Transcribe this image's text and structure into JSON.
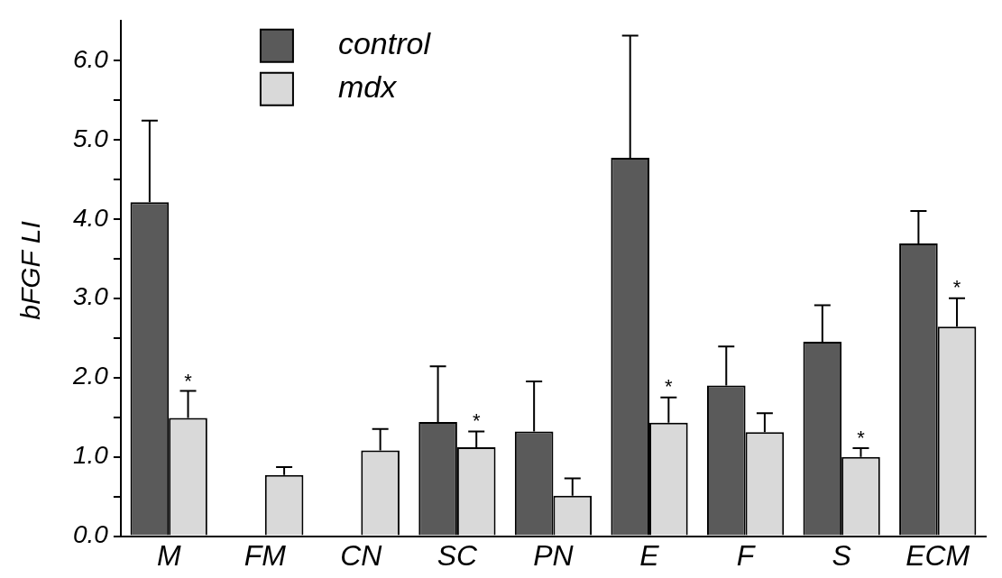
{
  "chart_data": {
    "type": "bar",
    "ylabel": "bFGF LI",
    "categories": [
      "M",
      "FM",
      "CN",
      "SC",
      "PN",
      "E",
      "F",
      "S",
      "ECM"
    ],
    "series": [
      {
        "name": "control",
        "color": "#5a5a5a",
        "values": [
          4.21,
          null,
          null,
          1.44,
          1.32,
          4.77,
          1.9,
          2.45,
          3.69
        ],
        "errors": [
          [
            4.21,
            5.24
          ],
          null,
          null,
          [
            1.44,
            2.14
          ],
          [
            1.32,
            1.95
          ],
          [
            4.77,
            6.31
          ],
          [
            1.9,
            2.39
          ],
          [
            2.45,
            2.91
          ],
          [
            3.69,
            4.1
          ]
        ]
      },
      {
        "name": "mdx",
        "color": "#d9d9d9",
        "values": [
          1.49,
          0.77,
          1.08,
          1.12,
          0.51,
          1.43,
          1.31,
          1.0,
          2.64
        ],
        "errors": [
          [
            1.49,
            1.83
          ],
          [
            0.77,
            0.87
          ],
          [
            1.08,
            1.35
          ],
          [
            1.12,
            1.32
          ],
          [
            0.51,
            0.73
          ],
          [
            1.43,
            1.75
          ],
          [
            1.31,
            1.55
          ],
          [
            1.0,
            1.11
          ],
          [
            2.64,
            3.0
          ]
        ]
      }
    ],
    "ylim": [
      0,
      6.5
    ],
    "yticks": [
      {
        "value": 0,
        "label": "0.0"
      },
      {
        "value": 0.5,
        "label": null
      },
      {
        "value": 1,
        "label": "1.0"
      },
      {
        "value": 1.5,
        "label": null
      },
      {
        "value": 2,
        "label": "2.0"
      },
      {
        "value": 2.5,
        "label": null
      },
      {
        "value": 3,
        "label": "3.0"
      },
      {
        "value": 3.5,
        "label": null
      },
      {
        "value": 4,
        "label": "4.0"
      },
      {
        "value": 4.5,
        "label": null
      },
      {
        "value": 5,
        "label": "5.0"
      },
      {
        "value": 5.5,
        "label": null
      },
      {
        "value": 6,
        "label": "6.0"
      }
    ],
    "annotations": [
      {
        "text": "*",
        "x": "M",
        "y": 1.95
      },
      {
        "text": "*",
        "x": "SC",
        "y": 1.45
      },
      {
        "text": "*",
        "x": "E",
        "y": 1.88
      },
      {
        "text": "*",
        "x": "S",
        "y": 1.24
      },
      {
        "text": "*",
        "x": "ECM",
        "y": 3.13
      }
    ],
    "legend": "top",
    "grid": false
  }
}
